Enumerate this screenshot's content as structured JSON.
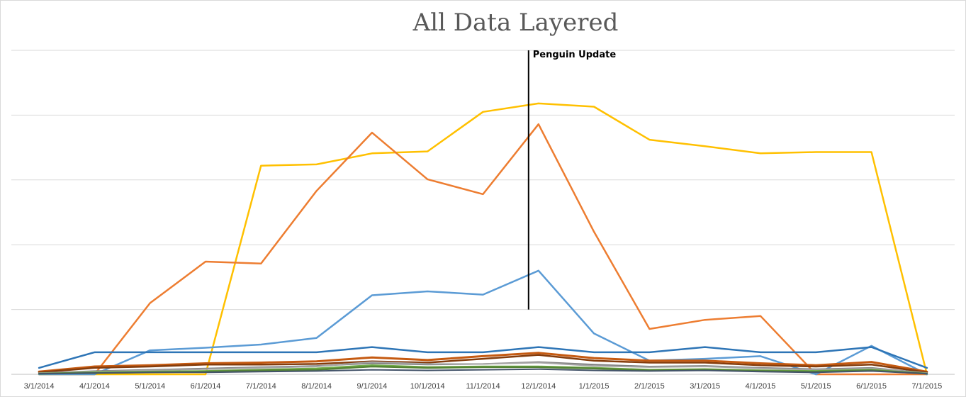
{
  "chart_data": {
    "type": "line",
    "title": "All Data Layered",
    "xlabel": "",
    "ylabel": "",
    "y_tick_labels_shown": false,
    "ylim": [
      0,
      500
    ],
    "grid": "horizontal",
    "legend": "none",
    "categories": [
      "3/1/2014",
      "4/1/2014",
      "5/1/2014",
      "6/1/2014",
      "7/1/2014",
      "8/1/2014",
      "9/1/2014",
      "10/1/2014",
      "11/1/2014",
      "12/1/2014",
      "1/1/2015",
      "2/1/2015",
      "3/1/2015",
      "4/1/2015",
      "5/1/2015",
      "6/1/2015",
      "7/1/2015"
    ],
    "annotation": {
      "label": "Penguin Update",
      "at_category_index": 9,
      "top_value": 500,
      "bottom_value": 100
    },
    "series": [
      {
        "color": "#ffc000",
        "width": 2.5,
        "values": [
          0,
          0,
          0,
          0,
          322,
          324,
          341,
          344,
          405,
          418,
          413,
          362,
          352,
          341,
          343,
          343,
          0
        ]
      },
      {
        "color": "#ed7d31",
        "width": 2.5,
        "values": [
          0,
          0,
          110,
          174,
          171,
          283,
          373,
          301,
          278,
          386,
          220,
          70,
          84,
          90,
          0,
          0,
          0
        ]
      },
      {
        "color": "#5b9bd5",
        "width": 2.5,
        "values": [
          0,
          0,
          37,
          41,
          46,
          56,
          122,
          128,
          123,
          160,
          63,
          21,
          24,
          28,
          0,
          44,
          0
        ]
      },
      {
        "color": "#2e75b6",
        "width": 2.5,
        "values": [
          10,
          34,
          34,
          34,
          34,
          34,
          42,
          34,
          34,
          42,
          34,
          34,
          42,
          34,
          34,
          42,
          10
        ]
      },
      {
        "color": "#c55a11",
        "width": 3,
        "values": [
          4,
          12,
          14,
          17,
          18,
          20,
          26,
          22,
          28,
          33,
          25,
          21,
          21,
          17,
          14,
          19,
          4
        ]
      },
      {
        "color": "#843c0c",
        "width": 2.5,
        "values": [
          3,
          10,
          12,
          15,
          15,
          16,
          20,
          18,
          24,
          30,
          21,
          18,
          18,
          14,
          12,
          15,
          3
        ]
      },
      {
        "color": "#7f7f7f",
        "width": 2,
        "values": [
          2,
          5,
          7,
          9,
          11,
          13,
          17,
          15,
          16,
          19,
          15,
          12,
          13,
          10,
          8,
          10,
          2
        ]
      },
      {
        "color": "#a5a5a5",
        "width": 2,
        "values": [
          2,
          4,
          6,
          8,
          10,
          12,
          19,
          16,
          16,
          18,
          13,
          11,
          12,
          9,
          7,
          9,
          2
        ]
      },
      {
        "color": "#70ad47",
        "width": 2.5,
        "values": [
          1,
          3,
          4,
          5,
          7,
          9,
          14,
          11,
          12,
          12,
          10,
          7,
          8,
          6,
          5,
          7,
          1
        ]
      },
      {
        "color": "#548235",
        "width": 2.5,
        "values": [
          1,
          2,
          3,
          4,
          6,
          7,
          12,
          10,
          11,
          11,
          9,
          6,
          7,
          5,
          4,
          6,
          1
        ]
      },
      {
        "color": "#44546a",
        "width": 2,
        "values": [
          1,
          2,
          3,
          3,
          4,
          5,
          7,
          6,
          7,
          8,
          6,
          5,
          6,
          4,
          3,
          5,
          1
        ]
      }
    ]
  }
}
